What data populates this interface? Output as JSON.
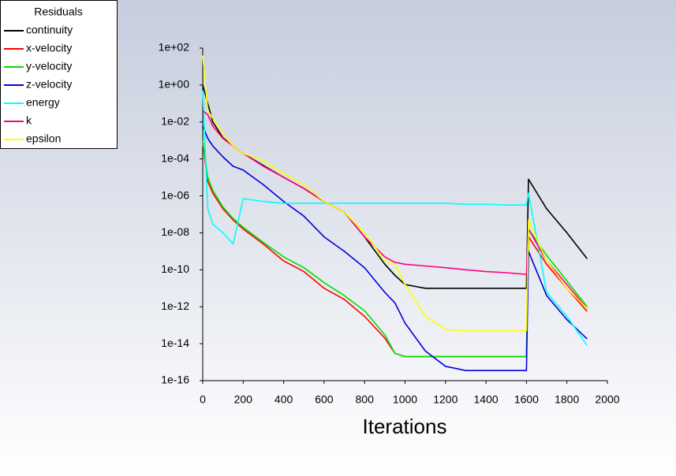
{
  "chart_data": {
    "type": "line",
    "title": "Residuals",
    "x_label": "Iterations",
    "yscale": "log",
    "legend": "upper-left",
    "x": [
      0,
      25,
      50,
      100,
      150,
      200,
      300,
      400,
      500,
      600,
      700,
      800,
      900,
      950,
      1000,
      1100,
      1200,
      1300,
      1400,
      1500,
      1600,
      1610,
      1700,
      1800,
      1900
    ],
    "xlim": [
      0,
      2000
    ],
    "xticks": [
      0,
      200,
      400,
      600,
      800,
      1000,
      1200,
      1400,
      1600,
      1800,
      2000
    ],
    "ylim": [
      1e-16,
      100
    ],
    "yticks": [
      {
        "value": 1e-16,
        "label": "1e-16"
      },
      {
        "value": 1e-14,
        "label": "1e-14"
      },
      {
        "value": 1e-12,
        "label": "1e-12"
      },
      {
        "value": 1e-10,
        "label": "1e-10"
      },
      {
        "value": 1e-08,
        "label": "1e-08"
      },
      {
        "value": 1e-06,
        "label": "1e-06"
      },
      {
        "value": 0.0001,
        "label": "1e-04"
      },
      {
        "value": 0.01,
        "label": "1e-02"
      },
      {
        "value": 1,
        "label": "1e+00"
      },
      {
        "value": 100,
        "label": "1e+02"
      }
    ],
    "series": [
      {
        "name": "continuity",
        "color": "#000000",
        "values": [
          1,
          0.1,
          0.01,
          0.0014,
          0.0005,
          0.0002,
          4.4e-05,
          1e-05,
          2.5e-06,
          5e-07,
          1.3e-07,
          6e-09,
          2e-10,
          5e-11,
          1.6e-11,
          1e-11,
          1e-11,
          1e-11,
          1e-11,
          1e-11,
          1e-11,
          8e-06,
          2e-07,
          1e-08,
          4e-10
        ]
      },
      {
        "name": "x-velocity",
        "color": "#ff0000",
        "values": [
          0.0008,
          6e-06,
          1.4e-06,
          2e-07,
          5e-08,
          1.6e-08,
          2.5e-09,
          3e-10,
          8e-11,
          1e-11,
          2.5e-12,
          3e-13,
          2e-14,
          3e-15,
          2e-15,
          2e-15,
          2e-15,
          2e-15,
          2e-15,
          2e-15,
          2e-15,
          6e-09,
          2e-10,
          1e-11,
          5.6e-13
        ]
      },
      {
        "name": "y-velocity",
        "color": "#00e000",
        "values": [
          0.001,
          1e-05,
          2e-06,
          2.5e-07,
          6e-08,
          2e-08,
          3e-09,
          5e-10,
          1.3e-10,
          2e-11,
          4e-12,
          6e-13,
          3e-14,
          3e-15,
          2e-15,
          2e-15,
          2e-15,
          2e-15,
          2e-15,
          2e-15,
          2e-15,
          1.6e-08,
          6e-10,
          2.5e-11,
          1e-12
        ]
      },
      {
        "name": "z-velocity",
        "color": "#0000dd",
        "values": [
          0.006,
          0.0013,
          0.0005,
          0.00013,
          4e-05,
          2.5e-05,
          4e-06,
          5e-07,
          8e-08,
          6e-09,
          1e-09,
          1.3e-10,
          6e-12,
          1.6e-12,
          1.3e-13,
          4e-15,
          6e-16,
          3.5e-16,
          3.5e-16,
          3.5e-16,
          3.5e-16,
          1e-09,
          4e-12,
          2e-13,
          1.8e-14
        ]
      },
      {
        "name": "energy",
        "color": "#00ffff",
        "values": [
          0.5,
          2e-07,
          3e-08,
          1e-08,
          2.5e-09,
          7e-07,
          5e-07,
          4e-07,
          4e-07,
          4e-07,
          4e-07,
          4e-07,
          4e-07,
          4e-07,
          4e-07,
          4e-07,
          4e-07,
          3.5e-07,
          3.5e-07,
          3.2e-07,
          3.2e-07,
          1.4e-06,
          6e-12,
          3e-13,
          8e-15
        ]
      },
      {
        "name": "k",
        "color": "#ff0080",
        "values": [
          0.04,
          0.025,
          0.006,
          0.0013,
          0.0005,
          0.0002,
          4e-05,
          1e-05,
          2.5e-06,
          5e-07,
          1.3e-07,
          6e-09,
          5e-10,
          2.5e-10,
          2e-10,
          1.6e-10,
          1.3e-10,
          1e-10,
          8e-11,
          7e-11,
          5.6e-11,
          1.6e-08,
          3e-10,
          1.6e-11,
          8e-13
        ]
      },
      {
        "name": "epsilon",
        "color": "#ffff00",
        "values": [
          40,
          0.04,
          0.016,
          0.0022,
          0.0005,
          0.0002,
          8e-05,
          1.6e-05,
          4e-06,
          5e-07,
          1.3e-07,
          1e-08,
          3e-10,
          2e-10,
          1.6e-11,
          3e-13,
          6e-14,
          5e-14,
          5e-14,
          5e-14,
          5e-14,
          5e-08,
          3e-10,
          1e-11,
          8e-13
        ]
      }
    ]
  }
}
